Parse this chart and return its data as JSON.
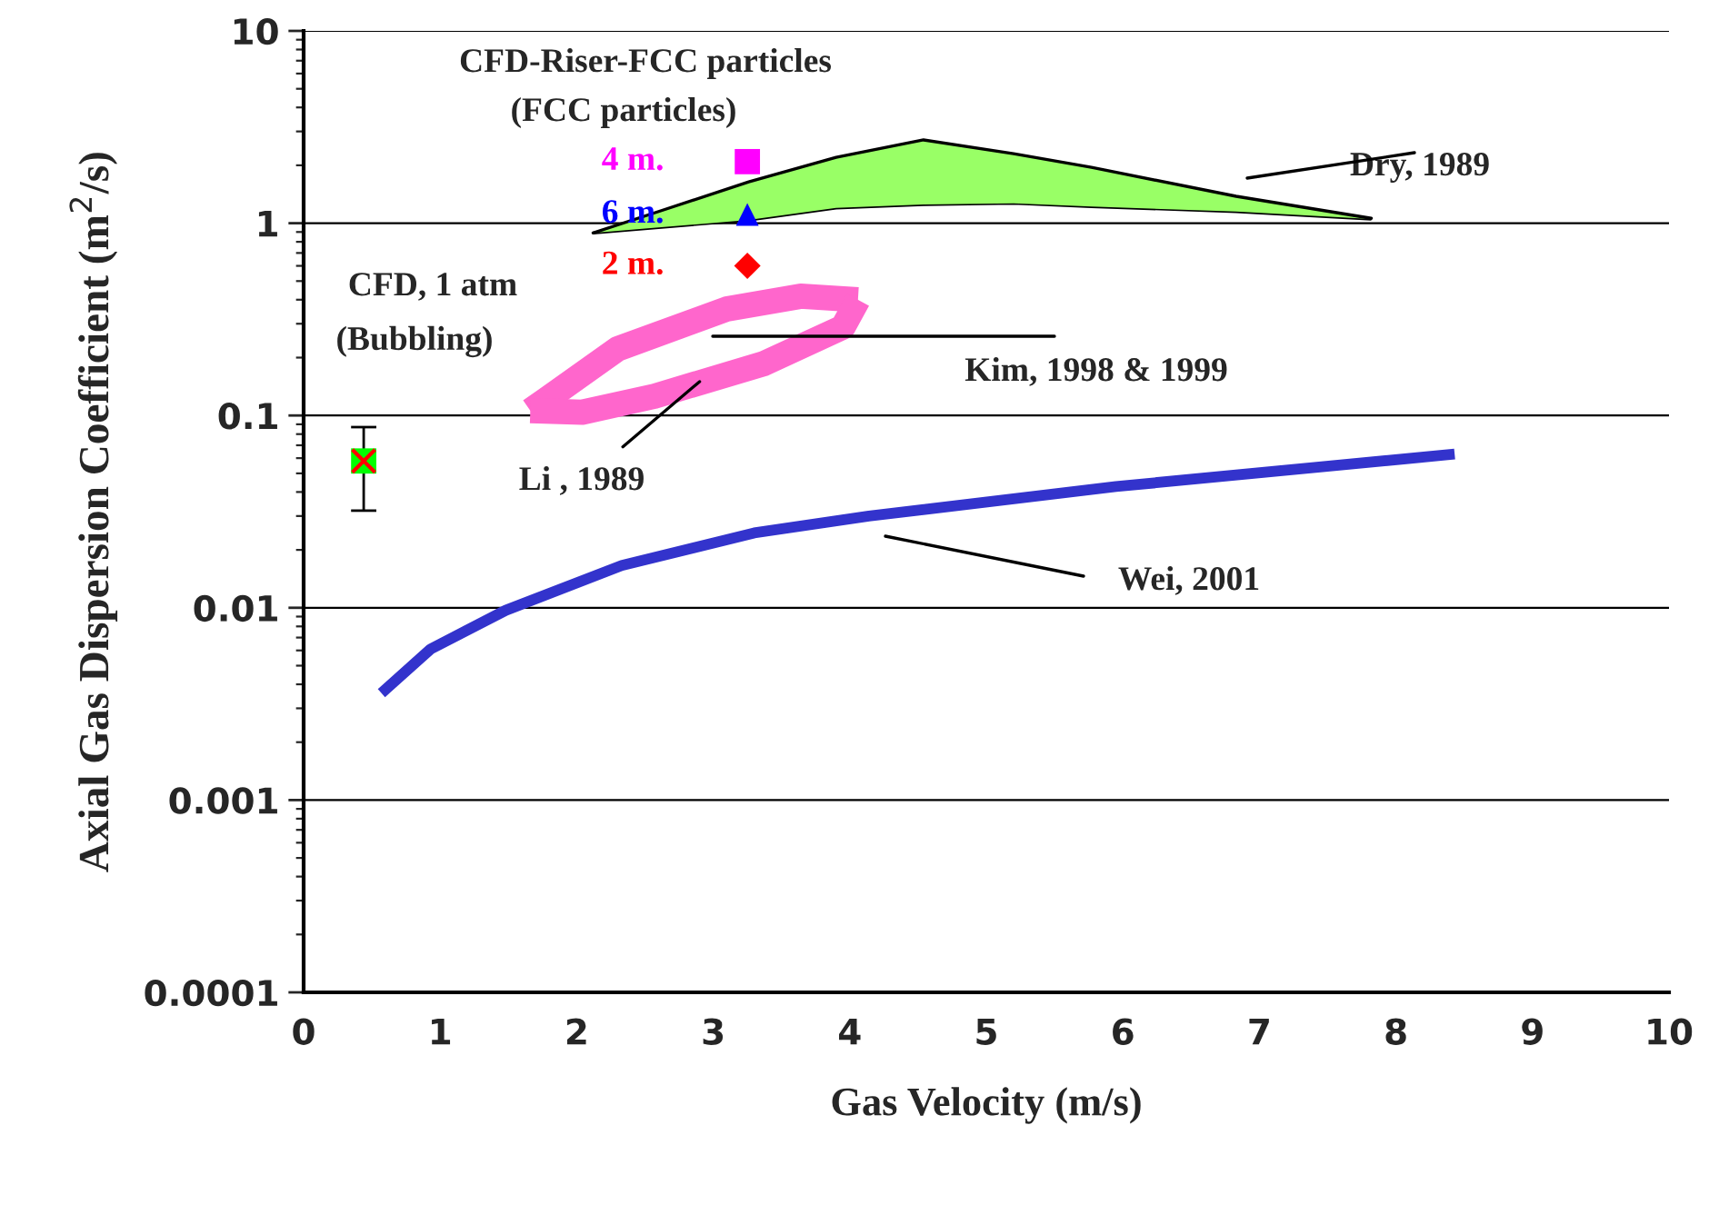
{
  "chart_data": {
    "type": "line",
    "xlabel": "Gas Velocity (m/s)",
    "ylabel": "Axial Gas Dispersion Coefficient (m$^{2}$/s)",
    "log": "y",
    "xlim": [
      0,
      10
    ],
    "ylim": [
      0.0001,
      10
    ],
    "xticks": [
      0,
      1,
      2,
      3,
      4,
      5,
      6,
      7,
      8,
      9,
      10
    ],
    "yticks": [
      0.0001,
      0.001,
      0.01,
      0.1,
      1,
      10
    ],
    "grid": "y",
    "legend": false,
    "series": [
      {
        "color": "#000000",
        "x": [
          2.12,
          2.6,
          3.26,
          3.9,
          4.54,
          5.2,
          5.77,
          6.83,
          7.82
        ],
        "values": [
          0.89,
          0.95,
          1.04,
          1.2,
          1.25,
          1.27,
          1.22,
          1.15,
          1.05
        ]
      },
      {
        "type": "area",
        "color": "#99ff66",
        "x": [
          2.12,
          2.6,
          3.26,
          3.9,
          4.54,
          5.2,
          5.77,
          6.83,
          7.82
        ],
        "values": [
          0.89,
          1.15,
          1.64,
          2.2,
          2.71,
          2.3,
          1.95,
          1.38,
          1.06
        ]
      },
      {
        "color": "#ff66cc",
        "x": [
          1.66,
          1.77,
          2.3,
          3.1,
          3.64,
          4.06
        ],
        "values": [
          0.106,
          0.12,
          0.222,
          0.358,
          0.417,
          0.4
        ]
      },
      {
        "color": "#ff66cc",
        "x": [
          1.66,
          2.04,
          2.57,
          3.37,
          3.95,
          4.06
        ],
        "values": [
          0.106,
          0.104,
          0.126,
          0.186,
          0.288,
          0.4
        ]
      },
      {
        "color": "#3333cc",
        "x": [
          0.57,
          0.93,
          1.48,
          2.33,
          3.3,
          4.14,
          5.95,
          8.43
        ],
        "values": [
          0.0036,
          0.0061,
          0.0097,
          0.0166,
          0.0245,
          0.03,
          0.0427,
          0.063
        ]
      },
      {
        "type": "scatter",
        "name": "4 m.",
        "color": "#ff00ff",
        "marker": "square",
        "x": [
          3.25
        ],
        "values": [
          2.09
        ]
      },
      {
        "type": "scatter",
        "name": "6 m.",
        "color": "#0000ff",
        "marker": "triangle",
        "x": [
          3.25
        ],
        "values": [
          1.11
        ]
      },
      {
        "type": "scatter",
        "name": "2 m.",
        "color": "#ff0000",
        "marker": "diamond",
        "x": [
          3.25
        ],
        "values": [
          0.6
        ]
      },
      {
        "type": "scatter",
        "color": "#00ff00",
        "marker": "square",
        "x": [
          0.44
        ],
        "values": [
          0.058
        ],
        "errors": [
          [
            0.032,
            0.087
          ]
        ]
      },
      {
        "type": "scatter",
        "color": "#ff0000",
        "marker": "cross",
        "x": [
          0.44
        ],
        "values": [
          0.058
        ]
      }
    ],
    "annotations": [
      "CFD-Riser-FCC particles",
      "(FCC particles)",
      "CFD, 1 atm",
      "(Bubbling)",
      "Dry, 1989",
      "Kim, 1998 & 1999",
      {
        "text": "Li , 1989",
        "x": 2.9,
        "y": 0.15
      },
      "Wei, 2001"
    ]
  }
}
